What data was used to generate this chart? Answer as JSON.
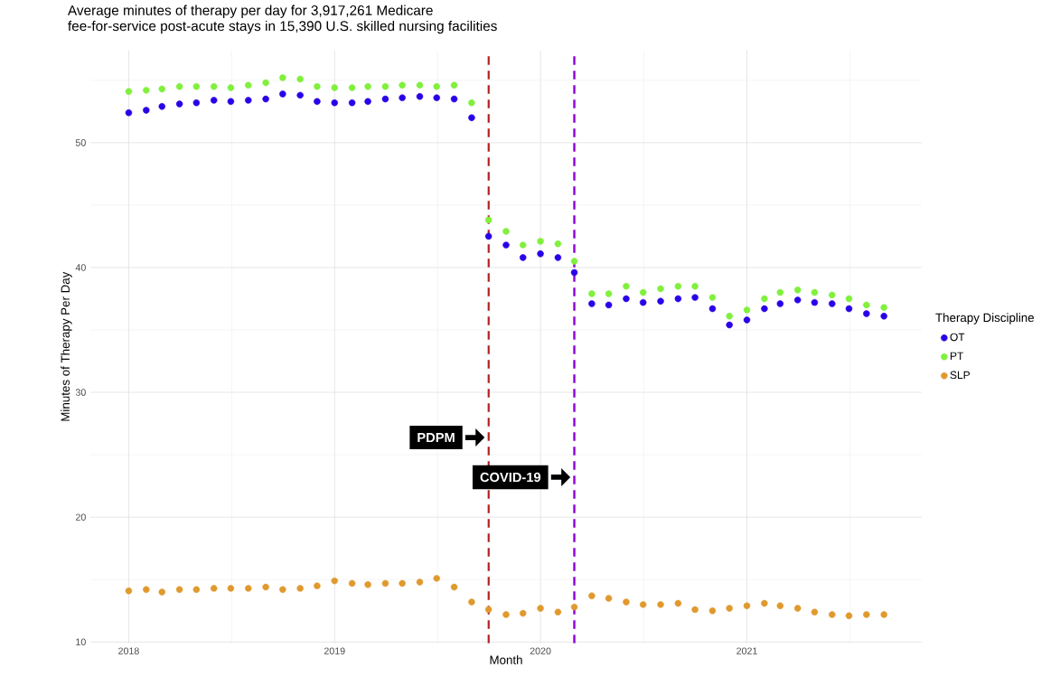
{
  "chart_data": {
    "type": "scatter",
    "title": "Average minutes of therapy per day for 3,917,261 Medicare\nfee-for-service post-acute stays in 15,390 U.S. skilled nursing facilities",
    "xlabel": "Month",
    "ylabel": "Minutes of Therapy Per Day",
    "legend_title": "Therapy Discipline",
    "x": [
      "2018-01",
      "2018-02",
      "2018-03",
      "2018-04",
      "2018-05",
      "2018-06",
      "2018-07",
      "2018-08",
      "2018-09",
      "2018-10",
      "2018-11",
      "2018-12",
      "2019-01",
      "2019-02",
      "2019-03",
      "2019-04",
      "2019-05",
      "2019-06",
      "2019-07",
      "2019-08",
      "2019-09",
      "2019-10",
      "2019-11",
      "2019-12",
      "2020-01",
      "2020-02",
      "2020-03",
      "2020-04",
      "2020-05",
      "2020-06",
      "2020-07",
      "2020-08",
      "2020-09",
      "2020-10",
      "2020-11",
      "2020-12",
      "2021-01",
      "2021-02",
      "2021-03",
      "2021-04",
      "2021-05",
      "2021-06",
      "2021-07",
      "2021-08",
      "2021-09"
    ],
    "series": [
      {
        "name": "OT",
        "color": "#2a00e8",
        "values": [
          52.4,
          52.6,
          52.9,
          53.1,
          53.2,
          53.4,
          53.3,
          53.4,
          53.5,
          53.9,
          53.8,
          53.3,
          53.2,
          53.2,
          53.3,
          53.5,
          53.6,
          53.7,
          53.6,
          53.5,
          52.0,
          42.5,
          41.8,
          40.8,
          41.1,
          40.8,
          39.6,
          37.1,
          37.0,
          37.5,
          37.2,
          37.3,
          37.5,
          37.6,
          36.7,
          35.4,
          35.8,
          36.7,
          37.1,
          37.4,
          37.2,
          37.1,
          36.7,
          36.3,
          36.1
        ]
      },
      {
        "name": "PT",
        "color": "#80f03c",
        "values": [
          54.1,
          54.2,
          54.3,
          54.5,
          54.5,
          54.5,
          54.4,
          54.6,
          54.8,
          55.2,
          55.1,
          54.5,
          54.4,
          54.4,
          54.5,
          54.5,
          54.6,
          54.6,
          54.5,
          54.6,
          53.2,
          43.8,
          42.9,
          41.8,
          42.1,
          41.9,
          40.5,
          37.9,
          37.9,
          38.5,
          38.0,
          38.3,
          38.5,
          38.5,
          37.6,
          36.1,
          36.6,
          37.5,
          38.0,
          38.2,
          38.0,
          37.8,
          37.5,
          37.0,
          36.8
        ]
      },
      {
        "name": "SLP",
        "color": "#e0992e",
        "values": [
          14.1,
          14.2,
          14.0,
          14.2,
          14.2,
          14.3,
          14.3,
          14.3,
          14.4,
          14.2,
          14.3,
          14.5,
          14.9,
          14.7,
          14.6,
          14.7,
          14.7,
          14.8,
          15.1,
          14.4,
          13.2,
          12.6,
          12.2,
          12.3,
          12.7,
          12.4,
          12.8,
          13.7,
          13.5,
          13.2,
          13.0,
          13.0,
          13.1,
          12.6,
          12.5,
          12.7,
          12.9,
          13.1,
          12.9,
          12.7,
          12.4,
          12.2,
          12.1,
          12.2,
          12.2
        ]
      }
    ],
    "xlim": [
      "2017-10-25",
      "2021-11-07"
    ],
    "ylim": [
      9.9,
      57.4
    ],
    "xticks": [
      {
        "value": "2018",
        "label": "2018"
      },
      {
        "value": "2019",
        "label": "2019"
      },
      {
        "value": "2020",
        "label": "2020"
      },
      {
        "value": "2021",
        "label": "2021"
      }
    ],
    "yticks": [
      10,
      20,
      30,
      40,
      50
    ],
    "ref_lines": [
      {
        "axis": "x",
        "value": "2019-10",
        "label": "PDPM",
        "color": "#b22222",
        "line_style": "dashed"
      },
      {
        "axis": "x",
        "value": "2020-03",
        "label": "COVID-19",
        "color": "#8a00d8",
        "line_style": "dashed"
      }
    ],
    "grid": true,
    "legend": "right",
    "marker": "circle"
  }
}
